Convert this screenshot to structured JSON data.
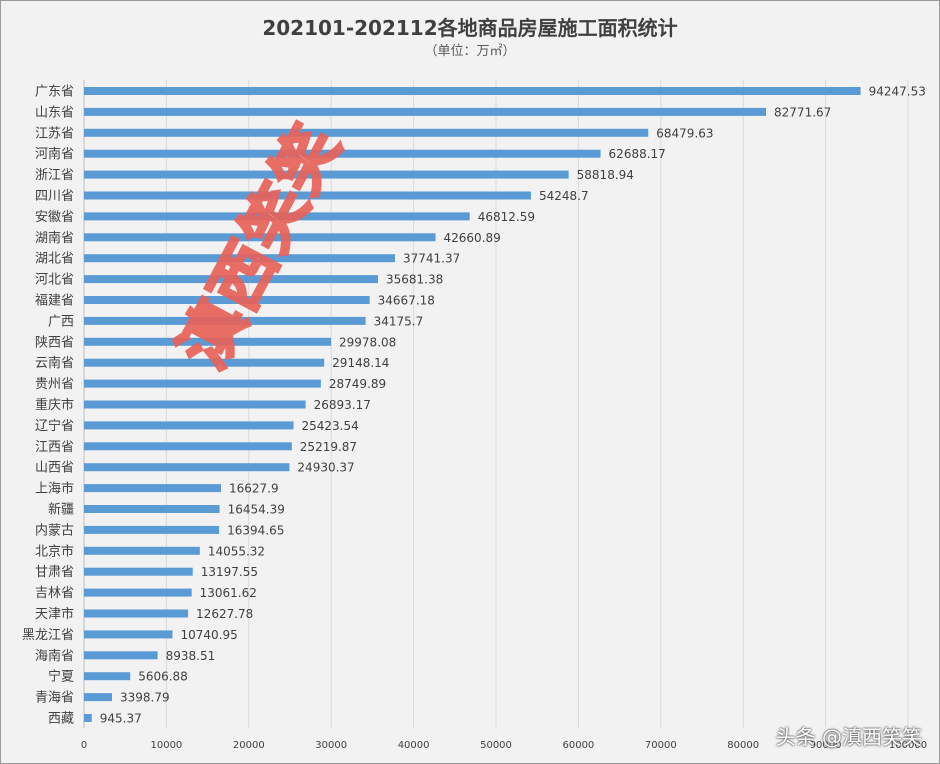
{
  "chart_data": {
    "type": "bar",
    "orientation": "horizontal",
    "title": "202101-202112各地商品房屋施工面积统计",
    "subtitle": "（单位：万㎡）",
    "categories": [
      "广东省",
      "山东省",
      "江苏省",
      "河南省",
      "浙江省",
      "四川省",
      "安徽省",
      "湖南省",
      "湖北省",
      "河北省",
      "福建省",
      "广西",
      "陕西省",
      "云南省",
      "贵州省",
      "重庆市",
      "辽宁省",
      "江西省",
      "山西省",
      "上海市",
      "新疆",
      "内蒙古",
      "北京市",
      "甘肃省",
      "吉林省",
      "天津市",
      "黑龙江省",
      "海南省",
      "宁夏",
      "青海省",
      "西藏"
    ],
    "values": [
      94247.53,
      82771.67,
      68479.63,
      62688.17,
      58818.94,
      54248.7,
      46812.59,
      42660.89,
      37741.37,
      35681.38,
      34667.18,
      34175.7,
      29978.08,
      29148.14,
      28749.89,
      26893.17,
      25423.54,
      25219.87,
      24930.37,
      16627.9,
      16454.39,
      16394.65,
      14055.32,
      13197.55,
      13061.62,
      12627.78,
      10740.95,
      8938.51,
      5606.88,
      3398.79,
      945.37
    ],
    "value_labels": [
      "94247.53",
      "82771.67",
      "68479.63",
      "62688.17",
      "58818.94",
      "54248.7",
      "46812.59",
      "42660.89",
      "37741.37",
      "35681.38",
      "34667.18",
      "34175.7",
      "29978.08",
      "29148.14",
      "28749.89",
      "26893.17",
      "25423.54",
      "25219.87",
      "24930.37",
      "16627.9",
      "16454.39",
      "16394.65",
      "14055.32",
      "13197.55",
      "13061.62",
      "12627.78",
      "10740.95",
      "8938.51",
      "5606.88",
      "3398.79",
      "945.37"
    ],
    "xlim": [
      0,
      100000
    ],
    "xticks": [
      "0",
      "10000",
      "20000",
      "30000",
      "40000",
      "50000",
      "60000",
      "70000",
      "80000",
      "90000",
      "100000"
    ],
    "grid": true,
    "bar_color": "#5b9bd5"
  },
  "watermark": "滇西笑笑",
  "footer_mark": "头条 @滇西笑笑"
}
